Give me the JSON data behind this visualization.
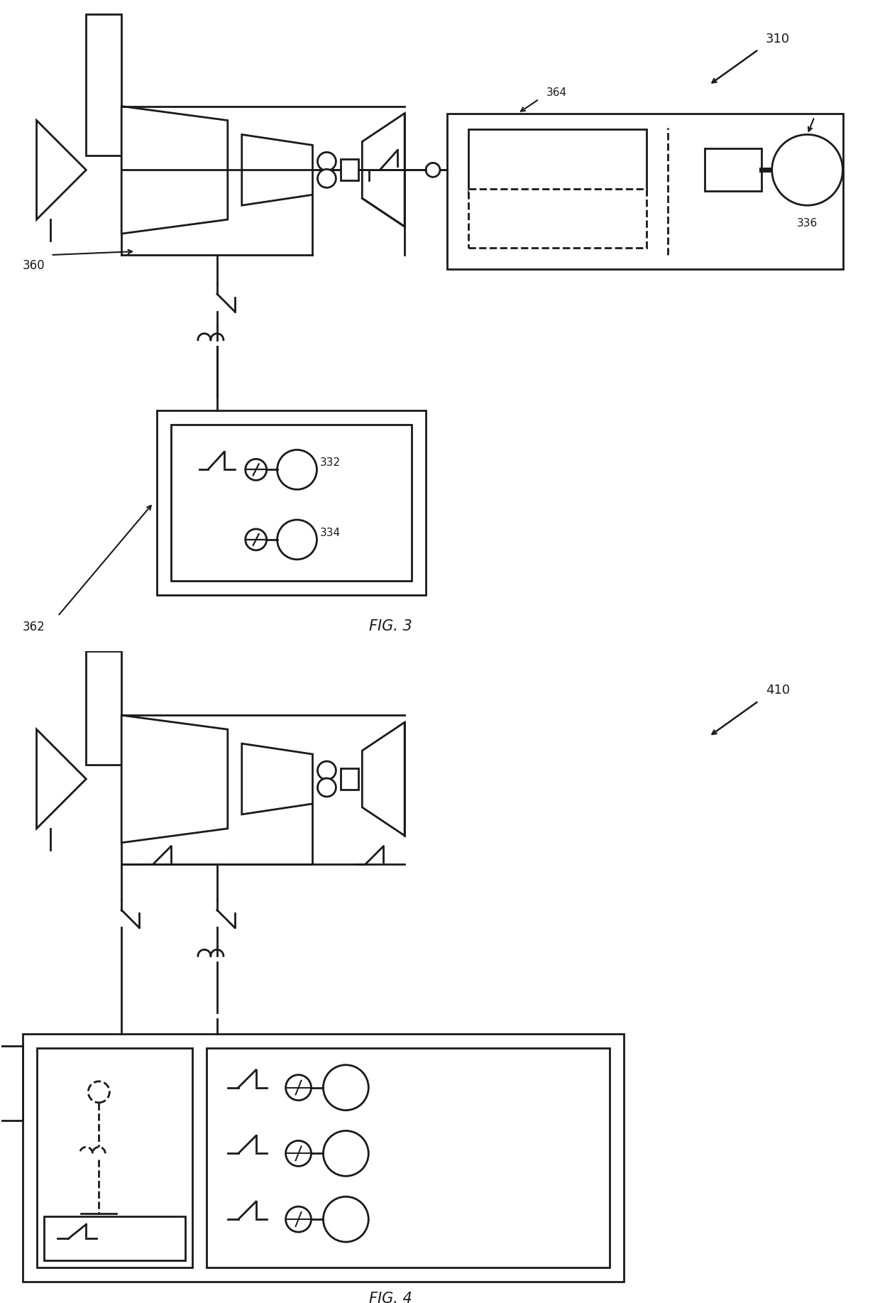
{
  "bg_color": "#ffffff",
  "line_color": "#1a1a1a",
  "fig_width": 12.4,
  "fig_height": 18.35,
  "fig3_label": "FIG. 3",
  "fig4_label": "FIG. 4",
  "label_310": "310",
  "label_336": "336",
  "label_360": "360",
  "label_362": "362",
  "label_364": "364",
  "label_332": "332",
  "label_334": "334",
  "label_410": "410"
}
